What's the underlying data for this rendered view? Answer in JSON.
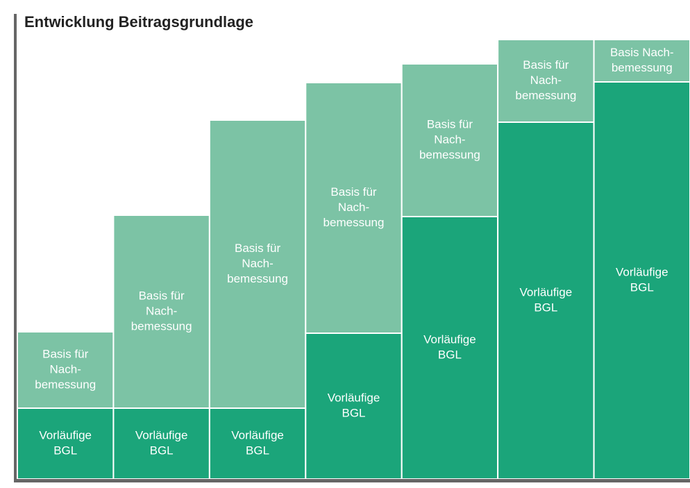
{
  "chart_data": {
    "type": "bar",
    "stacked": true,
    "title": "Entwicklung Beitragsgrundlage",
    "series": [
      {
        "color": "#1ba57a",
        "values": [
          102,
          102,
          102,
          210,
          378,
          514,
          572
        ],
        "labels": [
          [
            "Vorläufige",
            "BGL"
          ],
          [
            "Vorläufige",
            "BGL"
          ],
          [
            "Vorläufige",
            "BGL"
          ],
          [
            "Vorläufige",
            "BGL"
          ],
          [
            "Vorläufige",
            "BGL"
          ],
          [
            "Vorläufige",
            "BGL"
          ],
          [
            "Vorläufige",
            "BGL"
          ]
        ]
      },
      {
        "color": "#7cc3a5",
        "values": [
          110,
          278,
          415,
          361,
          220,
          119,
          61
        ],
        "labels": [
          [
            "Basis für",
            "Nach-",
            "bemessung"
          ],
          [
            "Basis für",
            "Nach-",
            "bemessung"
          ],
          [
            "Basis für",
            "Nach-",
            "bemessung"
          ],
          [
            "Basis für",
            "Nach-",
            "bemessung"
          ],
          [
            "Basis für",
            "Nach-",
            "bemessung"
          ],
          [
            "Basis für",
            "Nach-",
            "bemessung"
          ],
          [
            "Basis Nach-",
            "bemessung"
          ]
        ]
      }
    ]
  }
}
